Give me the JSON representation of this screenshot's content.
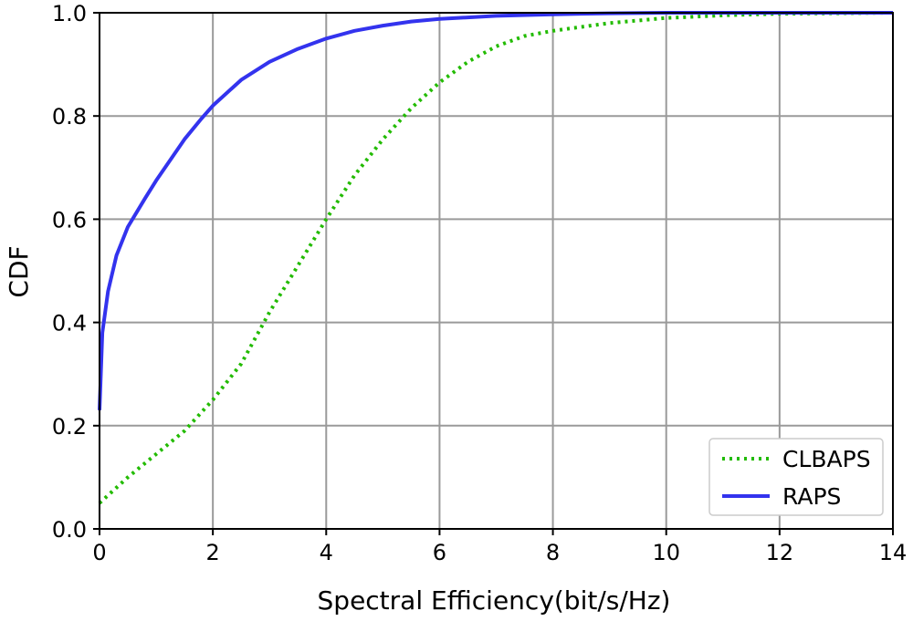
{
  "chart_data": {
    "type": "line",
    "title": "",
    "xlabel": "Spectral Efficiency(bit/s/Hz)",
    "ylabel": "CDF",
    "xlim": [
      0,
      14
    ],
    "ylim": [
      0,
      1
    ],
    "grid": true,
    "legend_position": "bottom-right",
    "x_ticks": [
      0,
      2,
      4,
      6,
      8,
      10,
      12,
      14
    ],
    "x_tick_labels": [
      "0",
      "2",
      "4",
      "6",
      "8",
      "10",
      "12",
      "14"
    ],
    "y_ticks": [
      0,
      0.2,
      0.4,
      0.6,
      0.8,
      1.0
    ],
    "y_tick_labels": [
      "0.0",
      "0.2",
      "0.4",
      "0.6",
      "0.8",
      "1.0"
    ],
    "series": [
      {
        "name": "CLBAPS",
        "style": "dotted",
        "color": "#22bb00",
        "x": [
          0,
          0.5,
          1.0,
          1.5,
          2.0,
          2.5,
          3.0,
          3.5,
          4.0,
          4.5,
          5.0,
          5.5,
          6.0,
          6.5,
          7.0,
          7.5,
          8.0,
          9.0,
          10.0,
          11.0,
          12.0,
          13.0,
          14.0
        ],
        "y": [
          0.05,
          0.1,
          0.145,
          0.19,
          0.25,
          0.32,
          0.42,
          0.51,
          0.6,
          0.685,
          0.755,
          0.815,
          0.865,
          0.905,
          0.935,
          0.955,
          0.965,
          0.98,
          0.99,
          0.995,
          0.998,
          0.999,
          1.0
        ]
      },
      {
        "name": "RAPS",
        "style": "solid",
        "color": "#3333ee",
        "x": [
          0,
          0.05,
          0.15,
          0.3,
          0.5,
          0.8,
          1.0,
          1.5,
          1.8,
          2.0,
          2.5,
          3.0,
          3.5,
          4.0,
          4.5,
          5.0,
          5.5,
          6.0,
          7.0,
          8.0,
          9.0,
          10.0,
          12.0,
          14.0
        ],
        "y": [
          0.23,
          0.38,
          0.46,
          0.53,
          0.585,
          0.64,
          0.675,
          0.755,
          0.795,
          0.82,
          0.87,
          0.905,
          0.93,
          0.95,
          0.965,
          0.975,
          0.983,
          0.988,
          0.994,
          0.997,
          0.999,
          1.0,
          1.0,
          1.0
        ]
      }
    ]
  },
  "legend": {
    "items": [
      {
        "label": "CLBAPS"
      },
      {
        "label": "RAPS"
      }
    ]
  }
}
